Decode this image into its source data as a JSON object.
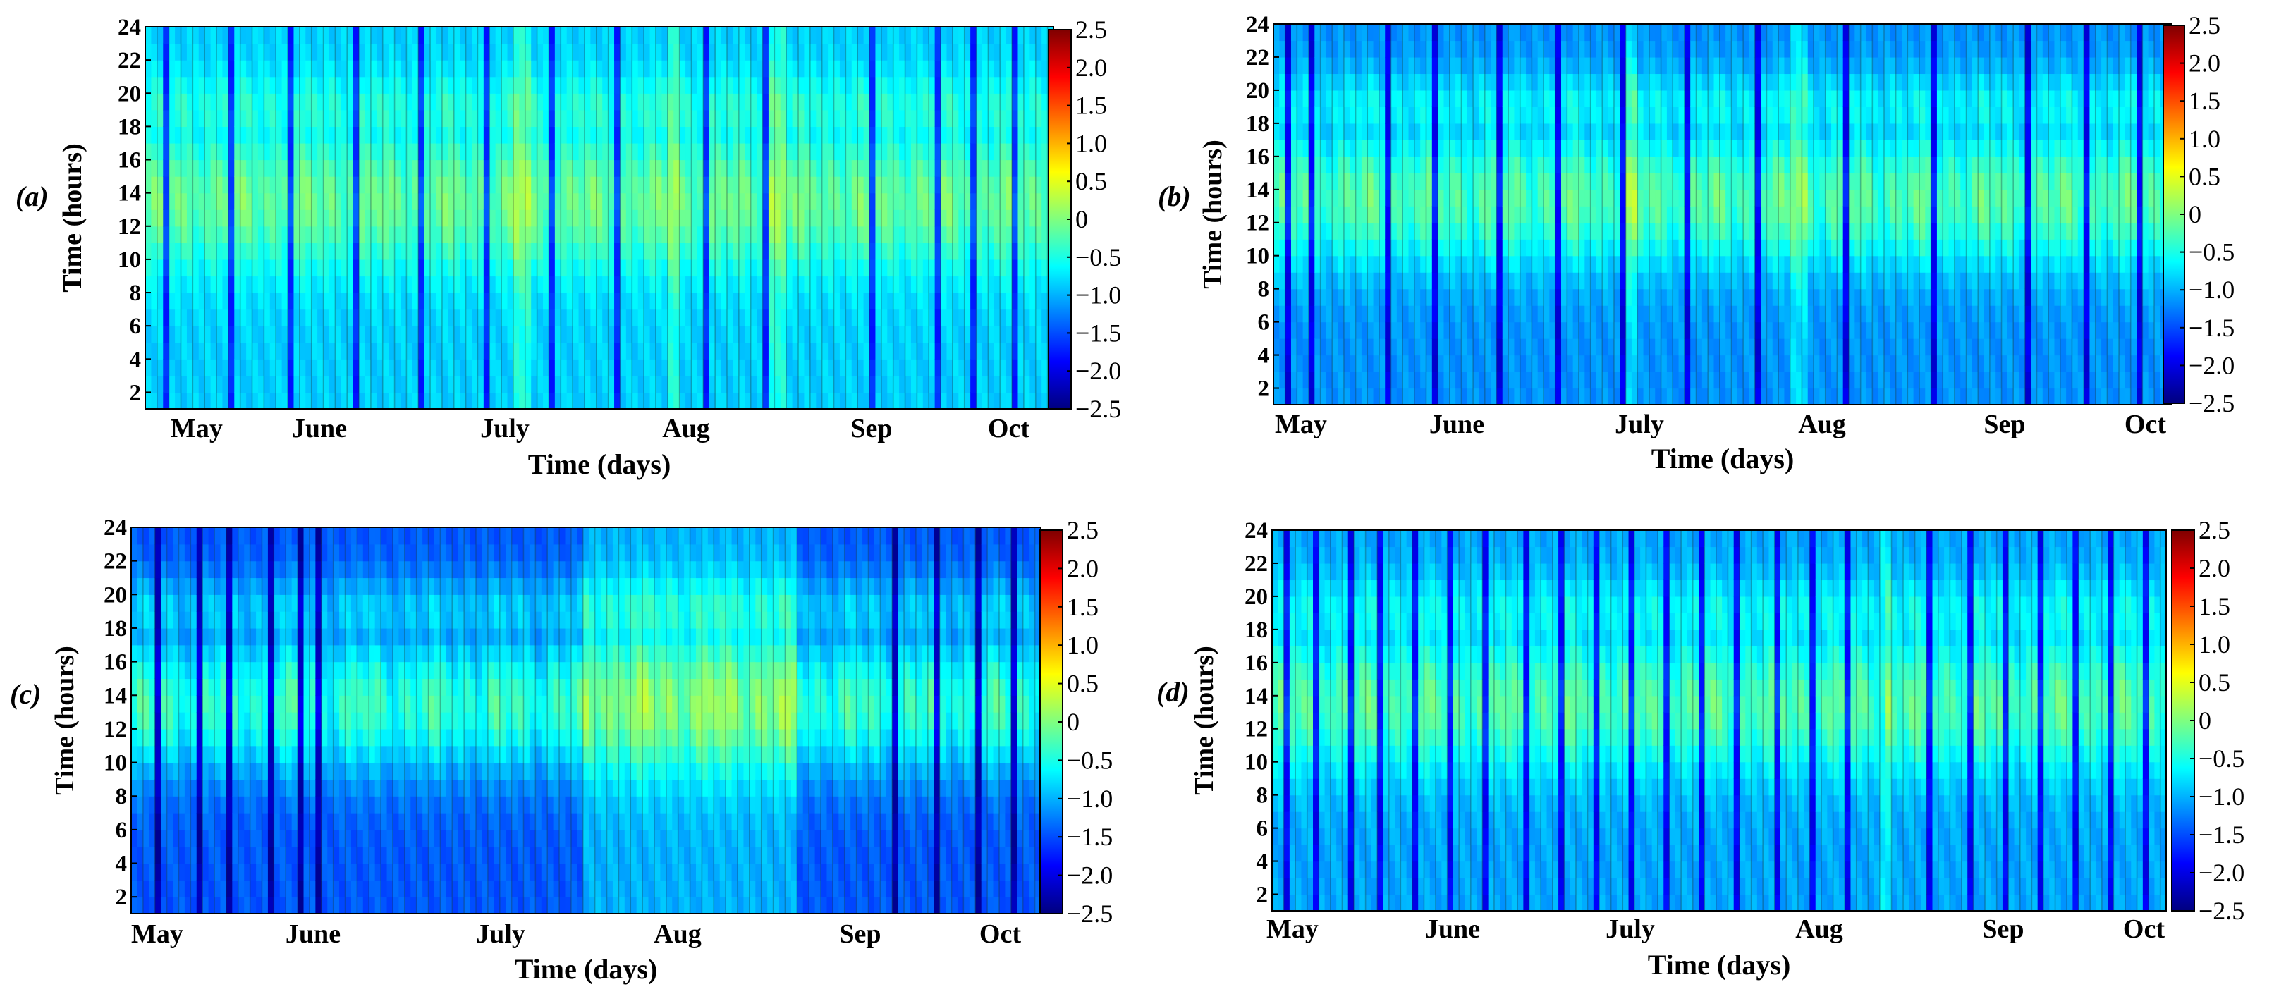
{
  "colormap": [
    "#00007f",
    "#0000ff",
    "#007fff",
    "#00ffff",
    "#7fff7f",
    "#ffff00",
    "#ff7f00",
    "#ff0000",
    "#7f0000"
  ],
  "chart_data": [
    {
      "type": "heatmap",
      "panel_label": "(a)",
      "xlabel": "Time (days)",
      "ylabel": "Time (hours)",
      "x_tick_labels": [
        "May",
        "June",
        "July",
        "Aug",
        "Sep",
        "Oct"
      ],
      "y_ticks": [
        2,
        4,
        6,
        8,
        10,
        12,
        14,
        16,
        18,
        20,
        22,
        24
      ],
      "ylim": [
        1,
        24
      ],
      "n_days": 153,
      "colorbar_ticks": [
        "2.5",
        "2.0",
        "1.5",
        "1.0",
        "0.5",
        "0",
        "−0.5",
        "−1.0",
        "−1.5",
        "−2.0",
        "−2.5"
      ],
      "colorbar_range": [
        -2.5,
        2.5
      ],
      "day_peak_level": -0.1,
      "night_level": -0.85,
      "dark_bands_days": [
        3,
        14,
        24,
        35,
        46,
        57,
        68,
        79,
        94,
        104,
        122,
        133,
        139,
        146
      ],
      "warm_days": [
        62,
        63,
        64,
        88,
        89,
        105,
        106,
        107
      ]
    },
    {
      "type": "heatmap",
      "panel_label": "(b)",
      "xlabel": "Time (days)",
      "ylabel": "Time (hours)",
      "x_tick_labels": [
        "May",
        "June",
        "July",
        "Aug",
        "Sep",
        "Oct"
      ],
      "y_ticks": [
        2,
        4,
        6,
        8,
        10,
        12,
        14,
        16,
        18,
        20,
        22,
        24
      ],
      "ylim": [
        1,
        24
      ],
      "n_days": 153,
      "colorbar_ticks": [
        "2.5",
        "2.0",
        "1.5",
        "1.0",
        "0.5",
        "0",
        "−0.5",
        "−1.0",
        "−1.5",
        "−2.0",
        "−2.5"
      ],
      "colorbar_range": [
        -2.5,
        2.5
      ],
      "day_peak_level": -0.2,
      "night_level": -1.15,
      "dark_bands_days": [
        2,
        6,
        19,
        27,
        38,
        48,
        59,
        70,
        82,
        97,
        112,
        128,
        138,
        147
      ],
      "warm_days": [
        60,
        61,
        88,
        89,
        90
      ]
    },
    {
      "type": "heatmap",
      "panel_label": "(c)",
      "xlabel": "Time (days)",
      "ylabel": "Time (hours)",
      "x_tick_labels": [
        "May",
        "June",
        "July",
        "Aug",
        "Sep",
        "Oct"
      ],
      "y_ticks": [
        2,
        4,
        6,
        8,
        10,
        12,
        14,
        16,
        18,
        20,
        22,
        24
      ],
      "ylim": [
        1,
        24
      ],
      "n_days": 153,
      "colorbar_ticks": [
        "2.5",
        "2.0",
        "1.5",
        "1.0",
        "0.5",
        "0",
        "−0.5",
        "−1.0",
        "−1.5",
        "−2.0",
        "−2.5"
      ],
      "colorbar_range": [
        -2.5,
        2.5
      ],
      "day_peak_level": -0.35,
      "night_level": -1.45,
      "dark_bands_days": [
        4,
        11,
        16,
        23,
        28,
        31,
        128,
        135,
        142,
        148
      ],
      "warm_days": []
    },
    {
      "type": "heatmap",
      "panel_label": "(d)",
      "xlabel": "Time (days)",
      "ylabel": "Time (hours)",
      "x_tick_labels": [
        "May",
        "June",
        "July",
        "Aug",
        "Sep",
        "Oct"
      ],
      "y_ticks": [
        2,
        4,
        6,
        8,
        10,
        12,
        14,
        16,
        18,
        20,
        22,
        24
      ],
      "ylim": [
        1,
        24
      ],
      "n_days": 153,
      "colorbar_ticks": [
        "2.5",
        "2.0",
        "1.5",
        "1.0",
        "0.5",
        "0",
        "−0.5",
        "−1.0",
        "−1.5",
        "−2.0",
        "−2.5"
      ],
      "colorbar_range": [
        -2.5,
        2.5
      ],
      "day_peak_level": -0.2,
      "night_level": -1.05,
      "dark_bands_days": [
        2,
        7,
        13,
        18,
        24,
        30,
        36,
        43,
        49,
        55,
        61,
        67,
        73,
        79,
        86,
        92,
        98,
        104,
        112,
        119,
        125,
        131,
        137,
        143,
        149
      ],
      "warm_days": [
        104,
        105
      ]
    }
  ]
}
